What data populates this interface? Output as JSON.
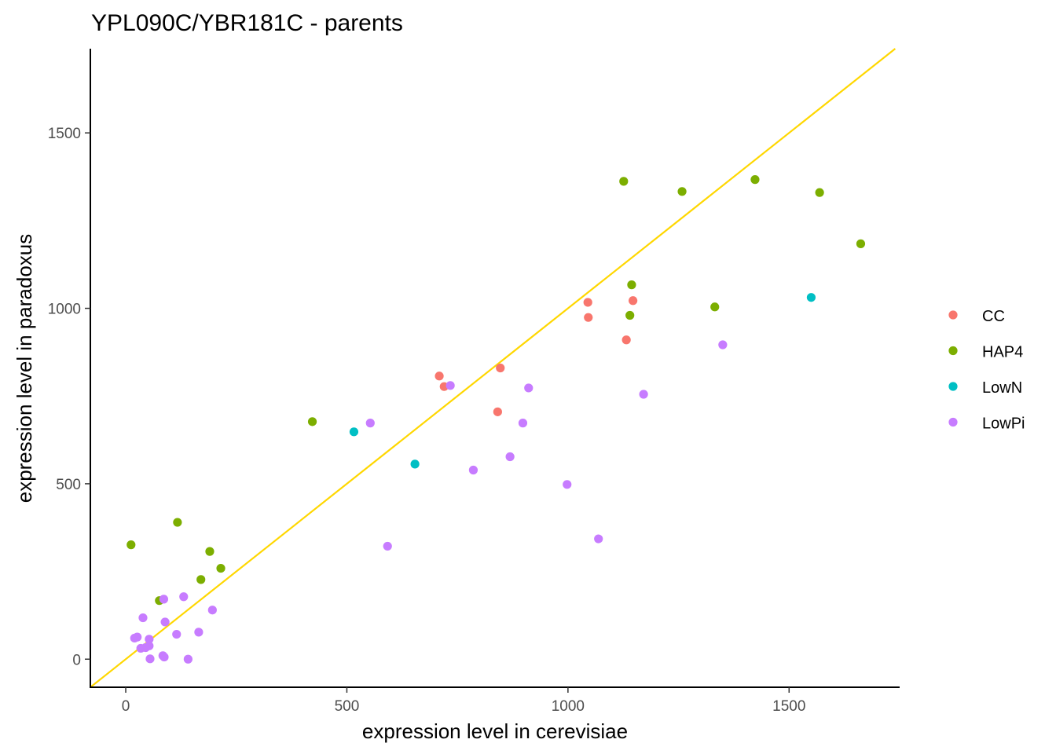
{
  "chart_data": {
    "type": "scatter",
    "title": "YPL090C/YBR181C - parents",
    "xlabel": "expression level in cerevisiae",
    "ylabel": "expression level in paradoxus",
    "xlim": [
      -80,
      1750
    ],
    "ylim": [
      -80,
      1740
    ],
    "x_ticks": [
      0,
      500,
      1000,
      1500
    ],
    "y_ticks": [
      0,
      500,
      1000,
      1500
    ],
    "grid": false,
    "legend_position": "right",
    "reference_line": {
      "type": "identity",
      "color": "#FFD700"
    },
    "series": [
      {
        "name": "CC",
        "color": "#F8766D",
        "points": [
          {
            "x": 709,
            "y": 807
          },
          {
            "x": 720,
            "y": 777
          },
          {
            "x": 847,
            "y": 830
          },
          {
            "x": 841,
            "y": 705
          },
          {
            "x": 1045,
            "y": 1017
          },
          {
            "x": 1046,
            "y": 974
          },
          {
            "x": 1147,
            "y": 1022
          },
          {
            "x": 1132,
            "y": 910
          }
        ]
      },
      {
        "name": "HAP4",
        "color": "#7CAE00",
        "points": [
          {
            "x": 12,
            "y": 326
          },
          {
            "x": 117,
            "y": 390
          },
          {
            "x": 76,
            "y": 167
          },
          {
            "x": 170,
            "y": 227
          },
          {
            "x": 190,
            "y": 307
          },
          {
            "x": 215,
            "y": 259
          },
          {
            "x": 422,
            "y": 677
          },
          {
            "x": 1126,
            "y": 1362
          },
          {
            "x": 1258,
            "y": 1333
          },
          {
            "x": 1423,
            "y": 1367
          },
          {
            "x": 1569,
            "y": 1330
          },
          {
            "x": 1662,
            "y": 1184
          },
          {
            "x": 1144,
            "y": 1067
          },
          {
            "x": 1140,
            "y": 980
          },
          {
            "x": 1332,
            "y": 1004
          }
        ]
      },
      {
        "name": "LowN",
        "color": "#00BFC4",
        "points": [
          {
            "x": 516,
            "y": 648
          },
          {
            "x": 654,
            "y": 556
          },
          {
            "x": 1550,
            "y": 1031
          }
        ]
      },
      {
        "name": "LowPi",
        "color": "#C77CFF",
        "points": [
          {
            "x": 553,
            "y": 673
          },
          {
            "x": 734,
            "y": 780
          },
          {
            "x": 911,
            "y": 773
          },
          {
            "x": 898,
            "y": 673
          },
          {
            "x": 869,
            "y": 577
          },
          {
            "x": 786,
            "y": 539
          },
          {
            "x": 998,
            "y": 498
          },
          {
            "x": 592,
            "y": 322
          },
          {
            "x": 1069,
            "y": 343
          },
          {
            "x": 1171,
            "y": 755
          },
          {
            "x": 1350,
            "y": 896
          },
          {
            "x": 86,
            "y": 171
          },
          {
            "x": 131,
            "y": 178
          },
          {
            "x": 39,
            "y": 118
          },
          {
            "x": 196,
            "y": 140
          },
          {
            "x": 89,
            "y": 106
          },
          {
            "x": 115,
            "y": 71
          },
          {
            "x": 165,
            "y": 77
          },
          {
            "x": 20,
            "y": 60
          },
          {
            "x": 26,
            "y": 63
          },
          {
            "x": 53,
            "y": 57
          },
          {
            "x": 34,
            "y": 31
          },
          {
            "x": 45,
            "y": 33
          },
          {
            "x": 53,
            "y": 38
          },
          {
            "x": 84,
            "y": 10
          },
          {
            "x": 87,
            "y": 6
          },
          {
            "x": 55,
            "y": 1
          },
          {
            "x": 141,
            "y": 0
          }
        ]
      }
    ]
  }
}
